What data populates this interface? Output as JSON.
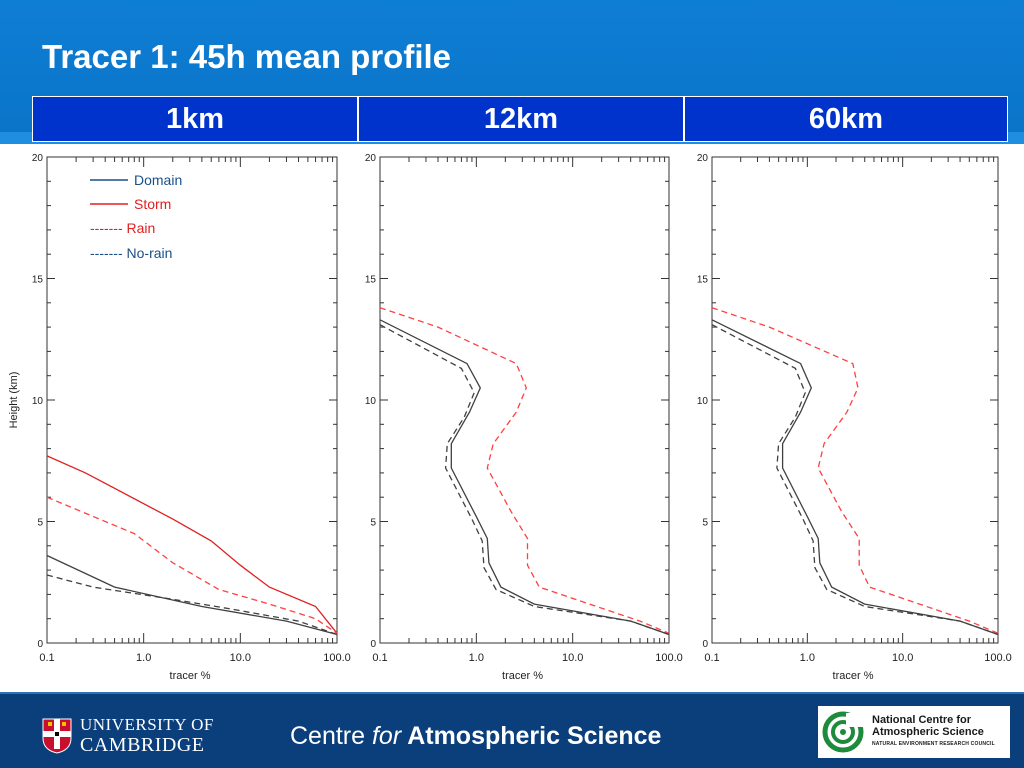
{
  "slide": {
    "title": "Tracer 1: 45h mean profile",
    "columns": [
      "1km",
      "12km",
      "60km"
    ],
    "footer": {
      "centre_prefix": "Centre ",
      "centre_for": "for",
      "centre_bold": " Atmospheric Science",
      "uni_line1": "UNIVERSITY OF",
      "uni_line2": "CAMBRIDGE",
      "ncas_line1": "National Centre for",
      "ncas_line2": "Atmospheric Science",
      "ncas_line3": "NATURAL ENVIRONMENT RESEARCH COUNCIL"
    }
  },
  "colors": {
    "domain": "#404040",
    "storm": "#e02020",
    "rain": "#ff4040",
    "norain": "#404040",
    "header_blue": "#0a74c8",
    "column_blue": "#0033cc",
    "footer_navy": "#0b3f7c"
  },
  "legend": {
    "entries": [
      {
        "label": "Domain",
        "style": "solid",
        "color": "#1a4f8a"
      },
      {
        "label": "Storm",
        "style": "solid",
        "color": "#e02020"
      },
      {
        "label": "Rain",
        "prefix": "------- ",
        "style": "dashed",
        "color": "#e02020"
      },
      {
        "label": "No-rain",
        "prefix": "------- ",
        "style": "dashed",
        "color": "#1a4f8a"
      }
    ]
  },
  "chart_data": [
    {
      "type": "line",
      "panel": "1km",
      "xscale": "log",
      "xlim": [
        0.1,
        100.0
      ],
      "ylim": [
        0,
        20
      ],
      "xticks": [
        "0.1",
        "1.0",
        "10.0",
        "100.0"
      ],
      "yticks": [
        "0",
        "5",
        "10",
        "15",
        "20"
      ],
      "xlabel": "tracer %",
      "ylabel": "Height (km)",
      "series": [
        {
          "name": "Domain",
          "color": "#404040",
          "dash": false,
          "points": [
            [
              0.1,
              3.6
            ],
            [
              0.5,
              2.3
            ],
            [
              4,
              1.5
            ],
            [
              30,
              0.9
            ],
            [
              100,
              0.35
            ]
          ]
        },
        {
          "name": "Storm",
          "color": "#e02020",
          "dash": false,
          "points": [
            [
              0.1,
              7.7
            ],
            [
              0.25,
              7.0
            ],
            [
              2,
              5.1
            ],
            [
              5,
              4.2
            ],
            [
              10,
              3.2
            ],
            [
              20,
              2.3
            ],
            [
              60,
              1.5
            ],
            [
              100,
              0.4
            ]
          ]
        },
        {
          "name": "Rain",
          "color": "#ff4040",
          "dash": true,
          "points": [
            [
              0.1,
              6.0
            ],
            [
              0.8,
              4.5
            ],
            [
              2,
              3.3
            ],
            [
              6,
              2.2
            ],
            [
              20,
              1.6
            ],
            [
              60,
              1.0
            ],
            [
              100,
              0.4
            ]
          ]
        },
        {
          "name": "No-rain",
          "color": "#404040",
          "dash": true,
          "points": [
            [
              0.1,
              2.8
            ],
            [
              0.3,
              2.3
            ],
            [
              2,
              1.8
            ],
            [
              8,
              1.4
            ],
            [
              40,
              0.9
            ],
            [
              100,
              0.35
            ]
          ]
        }
      ]
    },
    {
      "type": "line",
      "panel": "12km",
      "xscale": "log",
      "xlim": [
        0.1,
        100.0
      ],
      "ylim": [
        0,
        20
      ],
      "xticks": [
        "0.1",
        "1.0",
        "10.0",
        "100.0"
      ],
      "yticks": [
        "0",
        "5",
        "10",
        "15",
        "20"
      ],
      "xlabel": "tracer %",
      "ylabel": "",
      "series": [
        {
          "name": "Domain",
          "color": "#404040",
          "dash": false,
          "points": [
            [
              0.1,
              13.3
            ],
            [
              0.8,
              11.5
            ],
            [
              1.1,
              10.5
            ],
            [
              0.85,
              9.5
            ],
            [
              0.55,
              8.2
            ],
            [
              0.55,
              7.2
            ],
            [
              1.0,
              5.2
            ],
            [
              1.3,
              4.3
            ],
            [
              1.35,
              3.3
            ],
            [
              1.8,
              2.3
            ],
            [
              4,
              1.6
            ],
            [
              40,
              0.9
            ],
            [
              100,
              0.35
            ]
          ]
        },
        {
          "name": "Storm",
          "color": "#e02020",
          "dash": false,
          "points": []
        },
        {
          "name": "Rain",
          "color": "#ff4040",
          "dash": true,
          "points": [
            [
              0.1,
              13.8
            ],
            [
              0.4,
              13.0
            ],
            [
              2.6,
              11.5
            ],
            [
              3.3,
              10.5
            ],
            [
              2.6,
              9.5
            ],
            [
              1.5,
              8.2
            ],
            [
              1.3,
              7.2
            ],
            [
              2.3,
              5.4
            ],
            [
              3.4,
              4.3
            ],
            [
              3.4,
              3.2
            ],
            [
              4.5,
              2.3
            ],
            [
              15,
              1.6
            ],
            [
              50,
              0.9
            ],
            [
              100,
              0.4
            ]
          ]
        },
        {
          "name": "No-rain",
          "color": "#404040",
          "dash": true,
          "points": [
            [
              0.1,
              13.1
            ],
            [
              0.7,
              11.3
            ],
            [
              0.95,
              10.3
            ],
            [
              0.75,
              9.3
            ],
            [
              0.5,
              8.2
            ],
            [
              0.48,
              7.2
            ],
            [
              0.9,
              5.1
            ],
            [
              1.15,
              4.2
            ],
            [
              1.2,
              3.1
            ],
            [
              1.6,
              2.2
            ],
            [
              4,
              1.5
            ],
            [
              40,
              0.9
            ],
            [
              100,
              0.35
            ]
          ]
        }
      ]
    },
    {
      "type": "line",
      "panel": "60km",
      "xscale": "log",
      "xlim": [
        0.1,
        100.0
      ],
      "ylim": [
        0,
        20
      ],
      "xticks": [
        "0.1",
        "1.0",
        "10.0",
        "100.0"
      ],
      "yticks": [
        "0",
        "5",
        "10",
        "15",
        "20"
      ],
      "xlabel": "tracer %",
      "ylabel": "",
      "series": [
        {
          "name": "Domain",
          "color": "#404040",
          "dash": false,
          "points": [
            [
              0.1,
              13.3
            ],
            [
              0.85,
              11.5
            ],
            [
              1.1,
              10.5
            ],
            [
              0.85,
              9.5
            ],
            [
              0.55,
              8.2
            ],
            [
              0.55,
              7.2
            ],
            [
              1.0,
              5.2
            ],
            [
              1.3,
              4.3
            ],
            [
              1.35,
              3.3
            ],
            [
              1.8,
              2.3
            ],
            [
              4,
              1.6
            ],
            [
              40,
              0.9
            ],
            [
              100,
              0.35
            ]
          ]
        },
        {
          "name": "Storm",
          "color": "#e02020",
          "dash": false,
          "points": []
        },
        {
          "name": "Rain",
          "color": "#ff4040",
          "dash": true,
          "points": [
            [
              0.1,
              13.8
            ],
            [
              0.4,
              13.0
            ],
            [
              3.0,
              11.5
            ],
            [
              3.4,
              10.5
            ],
            [
              2.6,
              9.5
            ],
            [
              1.5,
              8.2
            ],
            [
              1.3,
              7.2
            ],
            [
              2.3,
              5.4
            ],
            [
              3.5,
              4.3
            ],
            [
              3.5,
              3.2
            ],
            [
              4.5,
              2.3
            ],
            [
              15,
              1.6
            ],
            [
              50,
              0.9
            ],
            [
              100,
              0.4
            ]
          ]
        },
        {
          "name": "No-rain",
          "color": "#404040",
          "dash": true,
          "points": [
            [
              0.1,
              13.1
            ],
            [
              0.75,
              11.3
            ],
            [
              0.95,
              10.3
            ],
            [
              0.75,
              9.3
            ],
            [
              0.5,
              8.2
            ],
            [
              0.48,
              7.2
            ],
            [
              0.9,
              5.1
            ],
            [
              1.15,
              4.2
            ],
            [
              1.2,
              3.1
            ],
            [
              1.6,
              2.2
            ],
            [
              4,
              1.5
            ],
            [
              40,
              0.9
            ],
            [
              100,
              0.35
            ]
          ]
        }
      ]
    }
  ]
}
